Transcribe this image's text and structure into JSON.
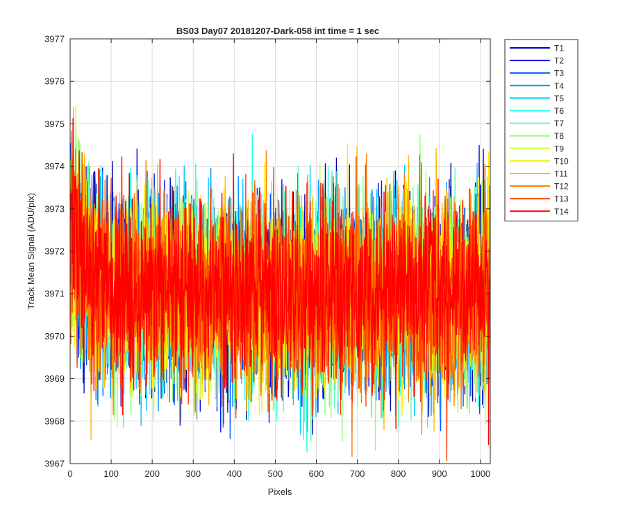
{
  "chart_data": {
    "type": "line",
    "title": "BS03 Day07 20181207-Dark-058 int time = 1 sec",
    "xlabel": "Pixels",
    "ylabel": "Track Mean Signal (ADU/pix)",
    "xlim": [
      0,
      1024
    ],
    "ylim": [
      3967,
      3977
    ],
    "xticks": [
      0,
      100,
      200,
      300,
      400,
      500,
      600,
      700,
      800,
      900,
      1000
    ],
    "yticks": [
      3967,
      3968,
      3969,
      3970,
      3971,
      3972,
      3973,
      3974,
      3975,
      3976,
      3977
    ],
    "grid": true,
    "legend_position": "outside-right",
    "noise_profile": {
      "start_mean": 3972.5,
      "mean": 3971.0,
      "decay_pixels": 40,
      "spread": 1.1
    },
    "series": [
      {
        "name": "T1",
        "color": "#0000b5",
        "seed": 11
      },
      {
        "name": "T2",
        "color": "#0014e6",
        "seed": 23
      },
      {
        "name": "T3",
        "color": "#0050ff",
        "seed": 37
      },
      {
        "name": "T4",
        "color": "#0092ff",
        "seed": 41
      },
      {
        "name": "T5",
        "color": "#00cfff",
        "seed": 53
      },
      {
        "name": "T6",
        "color": "#23ffe6",
        "seed": 67
      },
      {
        "name": "T7",
        "color": "#5effb0",
        "seed": 71
      },
      {
        "name": "T8",
        "color": "#8fff7c",
        "seed": 83
      },
      {
        "name": "T9",
        "color": "#c8ff3f",
        "seed": 97
      },
      {
        "name": "T10",
        "color": "#fff000",
        "seed": 101
      },
      {
        "name": "T11",
        "color": "#ffba00",
        "seed": 113
      },
      {
        "name": "T12",
        "color": "#ff7a00",
        "seed": 127
      },
      {
        "name": "T13",
        "color": "#ff4000",
        "seed": 131
      },
      {
        "name": "T14",
        "color": "#ff0000",
        "seed": 149
      }
    ]
  }
}
